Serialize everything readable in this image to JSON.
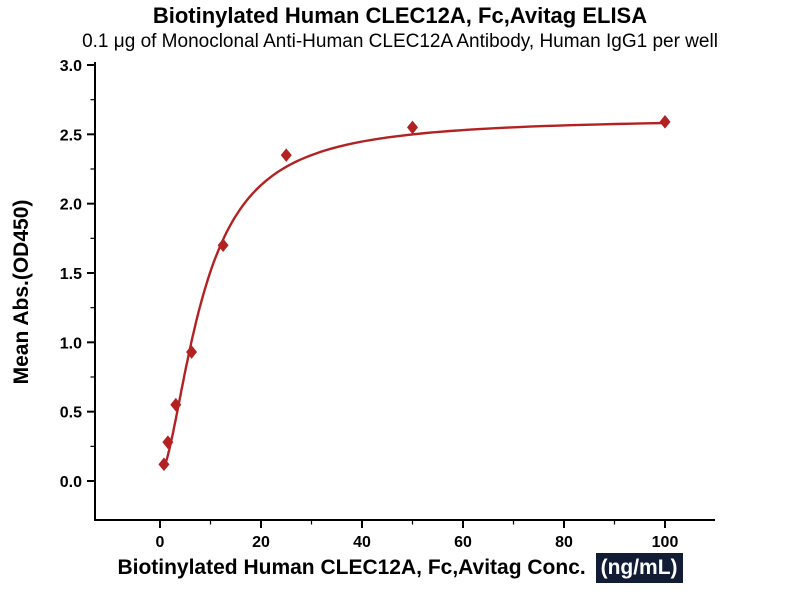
{
  "chart_data": {
    "type": "scatter",
    "title": "Biotinylated Human CLEC12A, Fc,Avitag ELISA",
    "subtitle": "0.1 μg of Monoclonal Anti-Human CLEC12A Antibody, Human IgG1 per well",
    "xlabel": "Biotinylated Human CLEC12A, Fc,Avitag Conc.",
    "xlabel_units": "(ng/mL)",
    "ylabel": "Mean Abs.(OD450)",
    "x": [
      0.78,
      1.56,
      3.13,
      6.25,
      12.5,
      25,
      50,
      100
    ],
    "y": [
      0.12,
      0.28,
      0.55,
      0.93,
      1.7,
      2.35,
      2.55,
      2.59
    ],
    "curve_fit_4pl": {
      "bottom": 0.05,
      "top": 2.62,
      "ec50": 8.5,
      "hill": 1.7
    },
    "x_ticks": [
      0,
      20,
      40,
      60,
      80,
      100
    ],
    "y_ticks": [
      "0.0",
      "0.5",
      "1.0",
      "1.5",
      "2.0",
      "2.5",
      "3.0"
    ],
    "xlim": [
      -13,
      110
    ],
    "ylim": [
      -0.28,
      3.0
    ],
    "grid": false,
    "legend": null,
    "marker": "diamond",
    "color": "#B22222",
    "units_highlight_bg": "#131c35",
    "units_highlight_text": "#FFFFFF"
  }
}
